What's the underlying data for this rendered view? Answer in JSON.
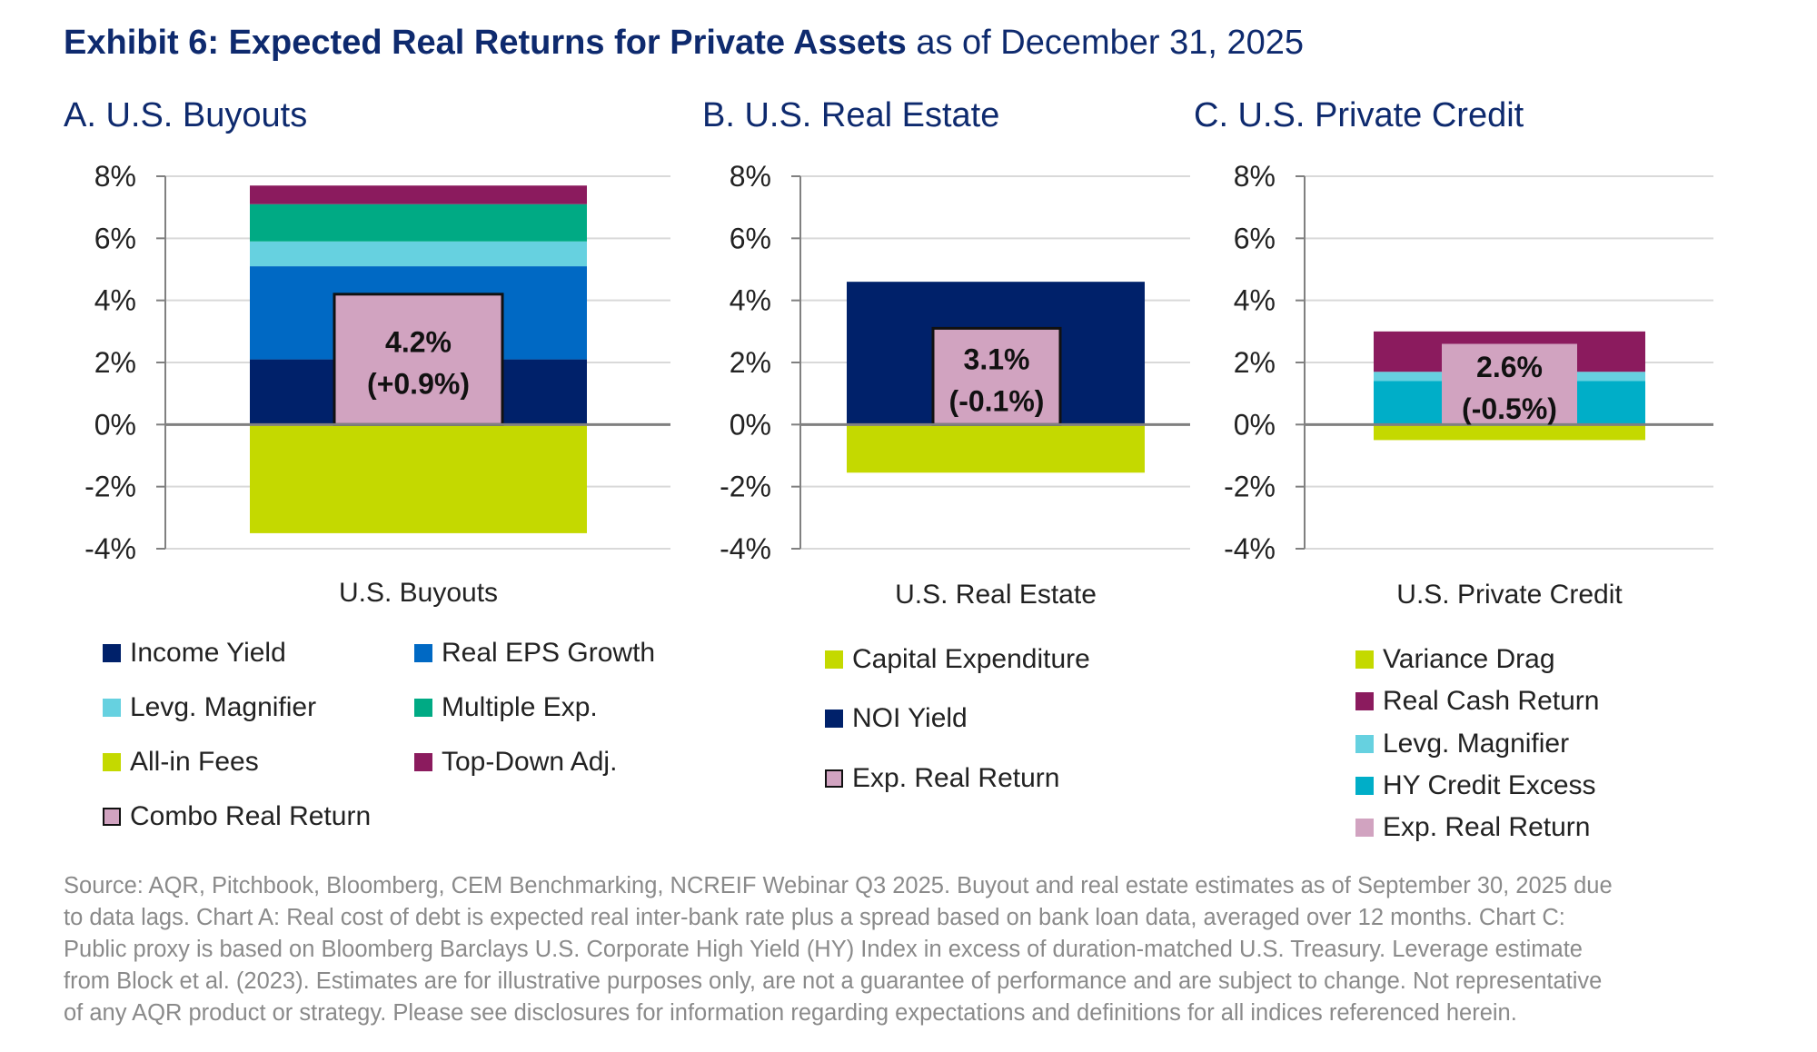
{
  "title": {
    "bold": "Exhibit 6: Expected Real Returns for Private Assets",
    "rest": " as of December 31, 2025"
  },
  "colors": {
    "income_yield": "#00216a",
    "real_eps": "#0069c4",
    "levg": "#66d1e0",
    "multiple": "#00aa84",
    "fees": "#c4d900",
    "topdown": "#8b1b5e",
    "combo": "#d1a3c0",
    "hy": "#00aec8"
  },
  "chart_data": [
    {
      "type": "bar",
      "stacked": true,
      "panel_title": "A. U.S. Buyouts",
      "categories": [
        "U.S. Buyouts"
      ],
      "ylim": [
        -4,
        8
      ],
      "yticks": [
        "-4%",
        "-2%",
        "0%",
        "2%",
        "4%",
        "6%",
        "8%"
      ],
      "grid": true,
      "series": [
        {
          "name": "Income Yield",
          "value": 2.1,
          "color": "#00216a"
        },
        {
          "name": "Real EPS Growth",
          "value": 3.0,
          "color": "#0069c4"
        },
        {
          "name": "Levg. Magnifier",
          "value": 0.8,
          "color": "#66d1e0"
        },
        {
          "name": "Multiple Exp.",
          "value": 1.2,
          "color": "#00aa84"
        },
        {
          "name": "Top-Down Adj.",
          "value": 0.6,
          "color": "#8b1b5e"
        },
        {
          "name": "All-in Fees",
          "value": -3.5,
          "color": "#c4d900"
        }
      ],
      "total": {
        "name": "Combo Real Return",
        "value": 4.2,
        "label": "4.2%",
        "change_label": "(+0.9%)",
        "color": "#d1a3c0",
        "bordered": true
      },
      "legend": [
        "Income Yield",
        "Real EPS Growth",
        "Levg. Magnifier",
        "Multiple Exp.",
        "All-in Fees",
        "Top-Down Adj.",
        "Combo Real Return"
      ]
    },
    {
      "type": "bar",
      "stacked": true,
      "panel_title": "B. U.S. Real Estate",
      "categories": [
        "U.S. Real Estate"
      ],
      "ylim": [
        -4,
        8
      ],
      "yticks": [
        "-4%",
        "-2%",
        "0%",
        "2%",
        "4%",
        "6%",
        "8%"
      ],
      "grid": true,
      "series": [
        {
          "name": "NOI Yield",
          "value": 4.6,
          "color": "#00216a"
        },
        {
          "name": "Capital Expenditure",
          "value": -1.55,
          "color": "#c4d900"
        }
      ],
      "total": {
        "name": "Exp. Real Return",
        "value": 3.1,
        "label": "3.1%",
        "change_label": "(-0.1%)",
        "color": "#d1a3c0",
        "bordered": true
      },
      "legend": [
        "Capital Expenditure",
        "NOI Yield",
        "Exp. Real Return"
      ]
    },
    {
      "type": "bar",
      "stacked": true,
      "panel_title": "C. U.S. Private Credit",
      "categories": [
        "U.S. Private Credit"
      ],
      "ylim": [
        -4,
        8
      ],
      "yticks": [
        "-4%",
        "-2%",
        "0%",
        "2%",
        "4%",
        "6%",
        "8%"
      ],
      "grid": true,
      "series": [
        {
          "name": "HY Credit Excess",
          "value": 1.4,
          "color": "#00aec8"
        },
        {
          "name": "Levg. Magnifier",
          "value": 0.3,
          "color": "#66d1e0"
        },
        {
          "name": "Real Cash Return",
          "value": 1.3,
          "color": "#8b1b5e"
        },
        {
          "name": "Variance Drag",
          "value": -0.5,
          "color": "#c4d900"
        }
      ],
      "total": {
        "name": "Exp. Real Return",
        "value": 2.6,
        "label": "2.6%",
        "change_label": "(-0.5%)",
        "color": "#d1a3c0",
        "bordered": false
      },
      "legend": [
        "Variance Drag",
        "Real Cash Return",
        "Levg. Magnifier",
        "HY Credit Excess",
        "Exp. Real Return"
      ]
    }
  ],
  "footnote": [
    "Source: AQR, Pitchbook, Bloomberg, CEM Benchmarking, NCREIF Webinar Q3 2025. Buyout and real estate estimates as of September 30, 2025 due",
    "to data lags. Chart A: Real cost of debt is expected real inter-bank rate plus a spread based on bank loan data, averaged over 12 months. Chart C:",
    "Public proxy is based on Bloomberg Barclays U.S. Corporate High Yield (HY) Index in excess of duration-matched U.S. Treasury. Leverage estimate",
    "from Block et al. (2023). Estimates are for illustrative purposes only, are not a guarantee of performance and are subject to change. Not representative",
    "of any AQR product or strategy. Please see disclosures for information regarding expectations and definitions for all indices referenced herein."
  ]
}
